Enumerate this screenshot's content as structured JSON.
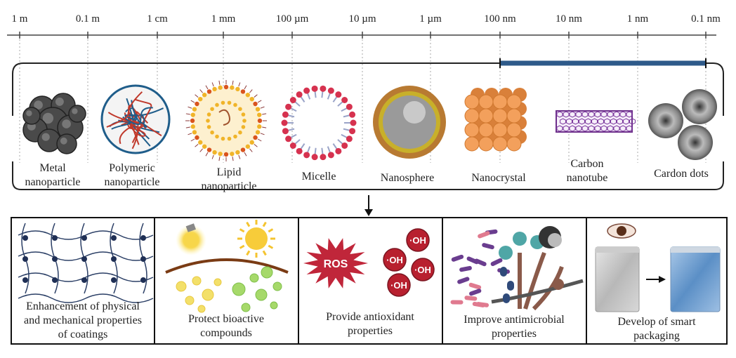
{
  "scale": {
    "labels": [
      "1 m",
      "0.1 m",
      "1 cm",
      "1 mm",
      "100 µm",
      "10 µm",
      "1 µm",
      "100 nm",
      "10 nm",
      "1 nm",
      "0.1 nm"
    ]
  },
  "nanoparticles": [
    {
      "lines": [
        "Metal",
        "nanoparticle"
      ]
    },
    {
      "lines": [
        "Polymeric",
        "nanoparticle"
      ]
    },
    {
      "lines": [
        "Lipid",
        "nanoparticle"
      ]
    },
    {
      "lines": [
        "Micelle"
      ]
    },
    {
      "lines": [
        "Nanosphere"
      ]
    },
    {
      "lines": [
        "Nanocrystal"
      ]
    },
    {
      "lines": [
        "Carbon",
        "nanotube"
      ]
    },
    {
      "lines": [
        "Cardon dots"
      ]
    }
  ],
  "panels": [
    {
      "lines": [
        "Enhancement of physical",
        "and mechanical properties",
        "of coatings"
      ]
    },
    {
      "lines": [
        "Protect bioactive",
        "compounds"
      ]
    },
    {
      "lines": [
        "Provide antioxidant",
        "properties"
      ],
      "ros": "ROS",
      "radicals": [
        "·OH",
        "·OH",
        "·OH",
        "·OH"
      ]
    },
    {
      "lines": [
        "Improve antimicrobial",
        "properties"
      ]
    },
    {
      "lines": [
        "Develop of smart",
        "packaging"
      ]
    }
  ]
}
